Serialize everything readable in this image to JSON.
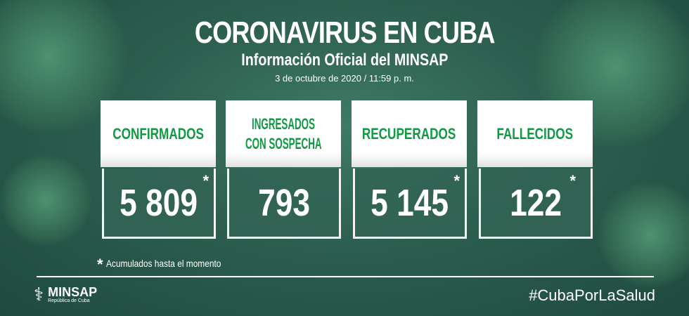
{
  "header": {
    "title": "CORONAVIRUS EN CUBA",
    "subtitle": "Información Oficial del MINSAP",
    "datetime": "3 de octubre de 2020 / 11:59 p. m."
  },
  "cards": [
    {
      "label": "CONFIRMADOS",
      "value": "5 809",
      "asterisk": "*"
    },
    {
      "label_line1": "INGRESADOS",
      "label_line2": "CON SOSPECHA",
      "value": "793"
    },
    {
      "label": "RECUPERADOS",
      "value": "5 145",
      "asterisk": "*"
    },
    {
      "label": "FALLECIDOS",
      "value": "122",
      "asterisk": "*"
    }
  ],
  "footnote": {
    "asterisk": "*",
    "text": "Acumulados hasta el momento"
  },
  "footer": {
    "logo_name": "MINSAP",
    "logo_sub": "República de Cuba",
    "hashtag": "#CubaPorLaSalud"
  },
  "colors": {
    "label_green": "#0f9a44",
    "background": "#2c5e4f"
  }
}
